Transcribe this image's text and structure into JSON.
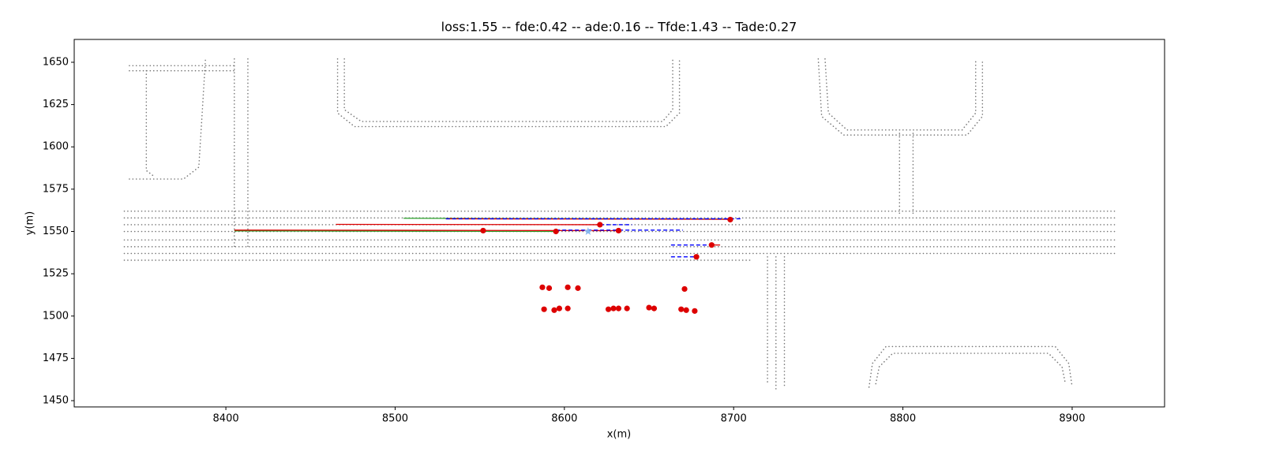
{
  "chart_data": {
    "type": "scatter",
    "title": "loss:1.55 -- fde:0.42 -- ade:0.16 -- Tfde:1.43 -- Tade:0.27",
    "x_label": "x(m)",
    "y_label": "y(m)",
    "xlim": [
      8310.4,
      8954.6
    ],
    "ylim": [
      1446.3,
      1663.5
    ],
    "xticks": [
      8400,
      8500,
      8600,
      8700,
      8800,
      8900
    ],
    "yticks": [
      1450,
      1475,
      1500,
      1525,
      1550,
      1575,
      1600,
      1625,
      1650
    ],
    "series": [
      {
        "type": "line",
        "style": "dotted",
        "color": "#777777",
        "x": [
          8343,
          8405
        ],
        "y": [
          1648,
          1648
        ]
      },
      {
        "type": "line",
        "style": "dotted",
        "color": "#777777",
        "x": [
          8343,
          8405
        ],
        "y": [
          1645,
          1645
        ]
      },
      {
        "type": "line",
        "style": "dotted",
        "color": "#777777",
        "x": [
          8353,
          8353,
          8357
        ],
        "y": [
          1645,
          1586,
          1583
        ]
      },
      {
        "type": "line",
        "style": "dotted",
        "color": "#777777",
        "x": [
          8343,
          8375,
          8384,
          8386,
          8388
        ],
        "y": [
          1581,
          1581,
          1588,
          1620,
          1653
        ]
      },
      {
        "type": "line",
        "style": "dotted",
        "color": "#777777",
        "x": [
          8405,
          8405
        ],
        "y": [
          1652,
          1540
        ]
      },
      {
        "type": "line",
        "style": "dotted",
        "color": "#777777",
        "x": [
          8413,
          8413
        ],
        "y": [
          1652,
          1540
        ]
      },
      {
        "type": "line",
        "style": "dotted",
        "color": "#777777",
        "x": [
          8466,
          8466,
          8476,
          8660,
          8668,
          8668
        ],
        "y": [
          1652,
          1620,
          1612,
          1612,
          1620,
          1652
        ]
      },
      {
        "type": "line",
        "style": "dotted",
        "color": "#777777",
        "x": [
          8470,
          8470,
          8480,
          8658,
          8664,
          8664
        ],
        "y": [
          1652,
          1622,
          1615,
          1615,
          1622,
          1652
        ]
      },
      {
        "type": "line",
        "style": "dotted",
        "color": "#777777",
        "x": [
          8750,
          8752,
          8765,
          8838,
          8847,
          8847
        ],
        "y": [
          1652,
          1618,
          1607,
          1607,
          1618,
          1652
        ]
      },
      {
        "type": "line",
        "style": "dotted",
        "color": "#777777",
        "x": [
          8754,
          8756,
          8767,
          8835,
          8843,
          8843
        ],
        "y": [
          1652,
          1620,
          1610,
          1610,
          1620,
          1652
        ]
      },
      {
        "type": "line",
        "style": "dotted",
        "color": "#777777",
        "x": [
          8798,
          8798
        ],
        "y": [
          1608,
          1560
        ]
      },
      {
        "type": "line",
        "style": "dotted",
        "color": "#777777",
        "x": [
          8806,
          8806
        ],
        "y": [
          1608,
          1560
        ]
      },
      {
        "type": "line",
        "style": "dotted",
        "color": "#777777",
        "x": [
          8340,
          8925
        ],
        "y": [
          1562,
          1562
        ]
      },
      {
        "type": "line",
        "style": "dotted",
        "color": "#777777",
        "x": [
          8340,
          8925
        ],
        "y": [
          1558,
          1558
        ]
      },
      {
        "type": "line",
        "style": "dotted",
        "color": "#777777",
        "x": [
          8340,
          8925
        ],
        "y": [
          1554,
          1554
        ]
      },
      {
        "type": "line",
        "style": "dotted",
        "color": "#777777",
        "x": [
          8340,
          8925
        ],
        "y": [
          1550,
          1550
        ]
      },
      {
        "type": "line",
        "style": "dotted",
        "color": "#777777",
        "x": [
          8340,
          8925
        ],
        "y": [
          1545,
          1545
        ]
      },
      {
        "type": "line",
        "style": "dotted",
        "color": "#777777",
        "x": [
          8340,
          8925
        ],
        "y": [
          1541,
          1541
        ]
      },
      {
        "type": "line",
        "style": "dotted",
        "color": "#777777",
        "x": [
          8340,
          8925
        ],
        "y": [
          1537,
          1537
        ]
      },
      {
        "type": "line",
        "style": "dotted",
        "color": "#777777",
        "x": [
          8340,
          8710
        ],
        "y": [
          1533,
          1533
        ]
      },
      {
        "type": "line",
        "style": "dotted",
        "color": "#777777",
        "x": [
          8720,
          8720
        ],
        "y": [
          1535,
          1460
        ]
      },
      {
        "type": "line",
        "style": "dotted",
        "color": "#777777",
        "x": [
          8725,
          8725
        ],
        "y": [
          1535,
          1457
        ]
      },
      {
        "type": "line",
        "style": "dotted",
        "color": "#777777",
        "x": [
          8730,
          8730
        ],
        "y": [
          1535,
          1459
        ]
      },
      {
        "type": "line",
        "style": "dotted",
        "color": "#777777",
        "x": [
          8780,
          8782,
          8790,
          8890,
          8898,
          8900
        ],
        "y": [
          1458,
          1472,
          1482,
          1482,
          1472,
          1458
        ]
      },
      {
        "type": "line",
        "style": "dotted",
        "color": "#777777",
        "x": [
          8784,
          8786,
          8794,
          8886,
          8894,
          8896
        ],
        "y": [
          1460,
          1470,
          1478,
          1478,
          1470,
          1460
        ]
      },
      {
        "type": "line",
        "style": "solid",
        "color": "#2ca02c",
        "x": [
          8505,
          8698
        ],
        "y": [
          1557.8,
          1557.3
        ]
      },
      {
        "type": "line",
        "style": "solid",
        "color": "#dd0000",
        "x": [
          8530,
          8698
        ],
        "y": [
          1557.5,
          1557.2
        ]
      },
      {
        "type": "line",
        "style": "dashed",
        "color": "#0000ff",
        "x": [
          8530,
          8705
        ],
        "y": [
          1557.5,
          1557.5
        ]
      },
      {
        "type": "line",
        "style": "solid",
        "color": "#dd0000",
        "x": [
          8465,
          8621
        ],
        "y": [
          1554.2,
          1554
        ]
      },
      {
        "type": "line",
        "style": "dashed",
        "color": "#0000ff",
        "x": [
          8621,
          8640
        ],
        "y": [
          1554,
          1554
        ]
      },
      {
        "type": "line",
        "style": "solid",
        "color": "#2ca02c",
        "x": [
          8405,
          8595
        ],
        "y": [
          1550.3,
          1550
        ]
      },
      {
        "type": "line",
        "style": "solid",
        "color": "#dd0000",
        "x": [
          8405,
          8632
        ],
        "y": [
          1550.8,
          1550.5
        ]
      },
      {
        "type": "line",
        "style": "dashed",
        "color": "#0000ff",
        "x": [
          8595,
          8670
        ],
        "y": [
          1550.8,
          1550.8
        ]
      },
      {
        "type": "line",
        "style": "dashed",
        "color": "#0000ff",
        "x": [
          8663,
          8687
        ],
        "y": [
          1542,
          1542
        ]
      },
      {
        "type": "line",
        "style": "solid",
        "color": "#dd0000",
        "x": [
          8687,
          8692
        ],
        "y": [
          1542,
          1542
        ]
      },
      {
        "type": "line",
        "style": "dashed",
        "color": "#0000ff",
        "x": [
          8663,
          8678
        ],
        "y": [
          1535,
          1535
        ]
      },
      {
        "type": "scatter",
        "marker": "star",
        "color": "#87b8f0",
        "x": [
          8614
        ],
        "y": [
          1550
        ]
      },
      {
        "type": "scatter",
        "marker": "circle",
        "color": "#dd0000",
        "x": [
          8698,
          8621,
          8552,
          8595,
          8632,
          8687,
          8678,
          8587,
          8591,
          8602,
          8608,
          8671,
          8588,
          8594,
          8597,
          8602,
          8626,
          8629,
          8632,
          8637,
          8650,
          8653,
          8669,
          8672,
          8677
        ],
        "y": [
          1557,
          1554,
          1550.5,
          1550,
          1550.5,
          1542,
          1535,
          1517,
          1516.5,
          1517,
          1516.5,
          1516,
          1504,
          1503.5,
          1504.5,
          1504.5,
          1504,
          1504.5,
          1504.5,
          1504.5,
          1505,
          1504.5,
          1504,
          1503.5,
          1503
        ]
      }
    ]
  }
}
